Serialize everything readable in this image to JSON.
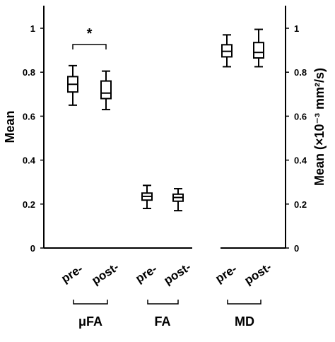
{
  "chart_data": {
    "type": "boxplot",
    "ylabel_left": "Mean",
    "ylabel_right": "Mean (×10⁻³ mm²/s)",
    "ylim": [
      0,
      1.1
    ],
    "yticks": [
      "0",
      "0.2",
      "0.4",
      "0.6",
      "0.8",
      "1"
    ],
    "groups": [
      {
        "name": "μFA",
        "axis": "left",
        "boxes": [
          {
            "label": "pre-",
            "min": 0.65,
            "q1": 0.71,
            "median": 0.745,
            "q3": 0.78,
            "max": 0.83
          },
          {
            "label": "post-",
            "min": 0.63,
            "q1": 0.68,
            "median": 0.705,
            "q3": 0.76,
            "max": 0.805
          }
        ],
        "annotation": "*"
      },
      {
        "name": "FA",
        "axis": "left",
        "boxes": [
          {
            "label": "pre-",
            "min": 0.18,
            "q1": 0.218,
            "median": 0.235,
            "q3": 0.25,
            "max": 0.285
          },
          {
            "label": "post-",
            "min": 0.17,
            "q1": 0.213,
            "median": 0.23,
            "q3": 0.245,
            "max": 0.27
          }
        ]
      },
      {
        "name": "MD",
        "axis": "right",
        "boxes": [
          {
            "label": "pre-",
            "min": 0.825,
            "q1": 0.87,
            "median": 0.895,
            "q3": 0.925,
            "max": 0.97
          },
          {
            "label": "post-",
            "min": 0.825,
            "q1": 0.865,
            "median": 0.89,
            "q3": 0.935,
            "max": 0.995
          }
        ]
      }
    ]
  }
}
